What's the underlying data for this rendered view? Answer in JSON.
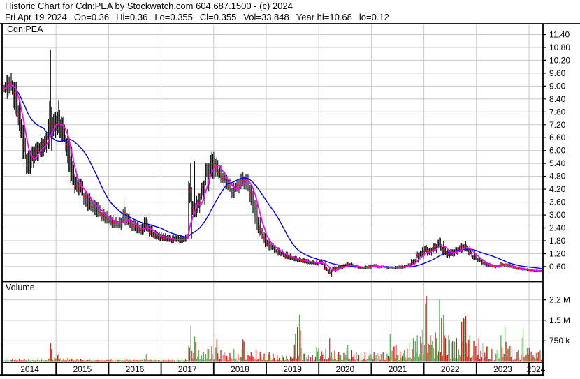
{
  "header": {
    "line1": "Historic Chart for Cdn:PEA by Stockwatch.com 604.687.1500 - (c) 2024"
  },
  "quote": {
    "date": "Fri Apr 19 2024",
    "open": "Op=0.36",
    "high": "Hi=0.36",
    "low": "Lo=0.355",
    "close": "Cl=0.355",
    "volume": "Vol=33,848",
    "year_high": "Year hi=10.68",
    "year_low": "lo=0.12"
  },
  "chart": {
    "symbol_label": "Cdn:PEA",
    "volume_label": "Volume"
  },
  "chart_data": {
    "type": "ohlc+volume",
    "title": "Historic Chart for Cdn:PEA",
    "legend_position": "none",
    "grid": true,
    "price_axis_ticks": [
      "11.40",
      "10.80",
      "10.20",
      "9.60",
      "9.00",
      "8.40",
      "7.80",
      "7.20",
      "6.60",
      "6.00",
      "5.40",
      "4.80",
      "4.20",
      "3.60",
      "3.00",
      "2.40",
      "1.80",
      "1.20",
      "0.60"
    ],
    "volume_axis_ticks": [
      {
        "label": "2.2 M",
        "value_k": 2250
      },
      {
        "label": "1.5 M",
        "value_k": 1500
      },
      {
        "label": "750 k",
        "value_k": 750
      }
    ],
    "year_labels": [
      "2014",
      "2015",
      "2016",
      "2017",
      "2018",
      "2019",
      "2020",
      "2021",
      "2022",
      "2023",
      "2024"
    ],
    "price_ylim": [
      0,
      11.7
    ],
    "chart_period_high": 10.68,
    "chart_period_low": 0.12,
    "monthly": {
      "start": "2014-01",
      "end": "2024-04",
      "close": [
        9.0,
        9.2,
        8.6,
        7.6,
        6.4,
        5.3,
        5.7,
        6.0,
        6.2,
        6.4,
        7.4,
        7.2,
        7.3,
        7.0,
        6.2,
        4.9,
        4.4,
        4.3,
        3.8,
        3.6,
        3.4,
        3.2,
        3.0,
        2.85,
        2.7,
        2.6,
        2.55,
        3.0,
        2.7,
        2.5,
        2.4,
        2.3,
        2.5,
        2.2,
        2.0,
        2.0,
        1.95,
        1.9,
        1.85,
        1.9,
        1.85,
        1.9,
        4.2,
        3.3,
        3.6,
        4.3,
        5.0,
        5.5,
        5.3,
        4.9,
        4.6,
        4.3,
        4.1,
        4.4,
        4.6,
        4.65,
        4.0,
        3.2,
        2.4,
        1.9,
        1.6,
        1.45,
        1.3,
        1.2,
        1.1,
        1.0,
        0.95,
        0.9,
        0.85,
        0.8,
        0.8,
        0.75,
        0.8,
        0.5,
        0.3,
        0.5,
        0.55,
        0.6,
        0.7,
        0.65,
        0.6,
        0.55,
        0.55,
        0.6,
        0.62,
        0.6,
        0.58,
        0.56,
        0.55,
        0.55,
        0.58,
        0.6,
        0.65,
        0.8,
        1.1,
        1.2,
        1.35,
        1.3,
        1.5,
        1.7,
        1.35,
        1.2,
        1.25,
        1.35,
        1.5,
        1.55,
        1.3,
        1.05,
        0.9,
        0.78,
        0.68,
        0.62,
        0.6,
        0.68,
        0.72,
        0.62,
        0.58,
        0.52,
        0.48,
        0.45,
        0.42,
        0.4,
        0.38,
        0.355
      ],
      "high": [
        9.5,
        9.6,
        9.2,
        8.4,
        7.2,
        6.0,
        6.2,
        6.4,
        6.6,
        6.8,
        10.68,
        7.8,
        8.35,
        7.6,
        7.0,
        6.2,
        4.9,
        4.7,
        4.3,
        4.0,
        3.8,
        3.6,
        3.4,
        3.2,
        3.0,
        2.9,
        2.9,
        3.7,
        3.1,
        2.8,
        2.7,
        2.6,
        2.9,
        2.5,
        2.3,
        2.2,
        2.15,
        2.1,
        2.05,
        2.1,
        2.05,
        2.1,
        5.4,
        5.5,
        4.0,
        4.6,
        5.4,
        5.94,
        5.7,
        5.3,
        5.0,
        4.7,
        4.5,
        4.8,
        5.0,
        4.9,
        4.4,
        3.7,
        2.9,
        2.2,
        1.9,
        1.7,
        1.5,
        1.4,
        1.3,
        1.2,
        1.1,
        1.05,
        1.0,
        0.95,
        0.9,
        0.9,
        0.95,
        0.8,
        0.55,
        0.62,
        0.65,
        0.72,
        0.82,
        0.78,
        0.7,
        0.65,
        0.65,
        0.7,
        0.72,
        0.68,
        0.65,
        0.63,
        0.62,
        0.62,
        0.65,
        0.68,
        0.75,
        0.95,
        1.3,
        1.5,
        1.6,
        1.5,
        1.7,
        1.95,
        1.8,
        1.4,
        1.4,
        1.5,
        1.7,
        1.8,
        1.55,
        1.3,
        1.1,
        0.95,
        0.8,
        0.72,
        0.68,
        0.8,
        0.85,
        0.75,
        0.65,
        0.6,
        0.56,
        0.52,
        0.5,
        0.46,
        0.44,
        0.42
      ],
      "low": [
        8.4,
        8.6,
        7.6,
        6.6,
        5.6,
        4.9,
        5.2,
        5.5,
        5.7,
        5.9,
        6.0,
        6.6,
        6.6,
        6.4,
        5.0,
        4.4,
        4.0,
        3.9,
        3.4,
        3.2,
        3.0,
        2.9,
        2.7,
        2.6,
        2.4,
        2.35,
        2.3,
        2.5,
        2.4,
        2.25,
        2.15,
        2.1,
        2.2,
        2.0,
        1.85,
        1.8,
        1.8,
        1.75,
        1.7,
        1.75,
        1.7,
        1.75,
        1.9,
        2.9,
        3.1,
        3.5,
        4.1,
        4.7,
        4.8,
        4.5,
        4.2,
        4.0,
        3.8,
        4.0,
        4.2,
        4.1,
        3.1,
        2.3,
        1.9,
        1.5,
        1.35,
        1.25,
        1.1,
        1.05,
        0.95,
        0.9,
        0.85,
        0.8,
        0.75,
        0.7,
        0.7,
        0.65,
        0.68,
        0.4,
        0.12,
        0.38,
        0.45,
        0.5,
        0.58,
        0.58,
        0.52,
        0.48,
        0.48,
        0.5,
        0.54,
        0.52,
        0.5,
        0.5,
        0.48,
        0.48,
        0.5,
        0.52,
        0.55,
        0.62,
        0.78,
        0.95,
        1.1,
        1.1,
        1.25,
        1.35,
        1.15,
        1.0,
        1.05,
        1.15,
        1.25,
        1.3,
        1.05,
        0.9,
        0.8,
        0.65,
        0.58,
        0.54,
        0.52,
        0.55,
        0.6,
        0.55,
        0.5,
        0.45,
        0.42,
        0.4,
        0.38,
        0.36,
        0.34,
        0.33
      ],
      "volume_k": [
        60,
        55,
        50,
        80,
        70,
        60,
        45,
        50,
        55,
        45,
        650,
        130,
        260,
        100,
        120,
        90,
        75,
        65,
        60,
        55,
        50,
        45,
        50,
        45,
        55,
        50,
        45,
        120,
        60,
        45,
        40,
        45,
        260,
        50,
        45,
        40,
        45,
        50,
        45,
        55,
        50,
        60,
        1300,
        900,
        400,
        320,
        450,
        550,
        800,
        420,
        320,
        300,
        450,
        280,
        800,
        380,
        320,
        400,
        350,
        280,
        320,
        280,
        240,
        220,
        200,
        180,
        1000,
        1700,
        280,
        240,
        220,
        520,
        360,
        450,
        850,
        380,
        320,
        300,
        580,
        400,
        340,
        280,
        320,
        360,
        340,
        300,
        320,
        280,
        2700,
        600,
        350,
        400,
        700,
        850,
        950,
        1150,
        2400,
        950,
        1050,
        2250,
        1700,
        950,
        750,
        850,
        1450,
        1650,
        950,
        750,
        850,
        650,
        550,
        450,
        400,
        950,
        1250,
        550,
        450,
        400,
        1200,
        500,
        350,
        300,
        400,
        250
      ]
    },
    "colors": {
      "bar": "#000000",
      "close_tick": "#ff0000",
      "ma_short": "#ff00ff",
      "ma_long": "#0000f0",
      "vol_up": "#4aad4a",
      "vol_down": "#ea1212",
      "vol_neutral": "#b3b3b3",
      "grid": "#c9c9c9",
      "border": "#000000"
    }
  }
}
